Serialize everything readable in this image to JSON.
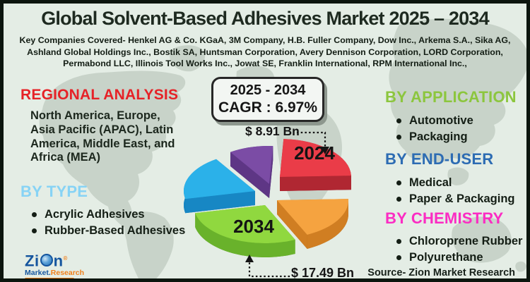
{
  "header": {
    "title": "Global Solvent-Based Adhesives Market 2025 – 2034",
    "companies": "Key Companies Covered- Henkel AG & Co. KGaA, 3M Company, H.B. Fuller Company, Dow Inc., Arkema S.A., Sika AG, Ashland Global Holdings Inc., Bostik SA, Huntsman Corporation, Avery Dennison Corporation, LORD Corporation, Permabond LLC, Illinois Tool Works Inc., Jowat SE, Franklin International, RPM International Inc.,"
  },
  "sections": {
    "regional": {
      "heading": "REGIONAL ANALYSIS",
      "color": "#e62227",
      "body": "North America, Europe, Asia Pacific (APAC), Latin America, Middle East, and Africa (MEA)"
    },
    "by_type": {
      "heading": "BY TYPE",
      "color": "#87d3f5",
      "items": [
        "Acrylic Adhesives",
        "Rubber-Based Adhesives"
      ]
    },
    "by_application": {
      "heading": "BY APPLICATION",
      "color": "#8cc63e",
      "items": [
        "Automotive",
        "Packaging"
      ]
    },
    "by_end_user": {
      "heading": "BY END-USER",
      "color": "#2d6cb3",
      "items": [
        "Medical",
        "Paper & Packaging"
      ]
    },
    "by_chemistry": {
      "heading": "BY CHEMISTRY",
      "color": "#fb2cc3",
      "items": [
        "Chloroprene Rubber",
        "Polyurethane"
      ]
    }
  },
  "cagr_box": {
    "period": "2025 - 2034",
    "cagr": "CAGR : 6.97%"
  },
  "chart_data": {
    "type": "pie",
    "title": "Global Solvent-Based Adhesives Market size 2024 vs 2034",
    "legend_position": "none",
    "slices": [
      {
        "label": "",
        "name": "purple-slice",
        "top": "#7b4ca5",
        "side": "#5e3685",
        "dark": "#4b2a6d",
        "start": 237,
        "end": 273,
        "explode": [
          2,
          -16
        ]
      },
      {
        "label": "",
        "name": "blue-slice",
        "top": "#2bb1e9",
        "side": "#1787c4",
        "dark": "#0f6ba2",
        "start": 168,
        "end": 237,
        "explode": [
          -18,
          -6
        ]
      },
      {
        "label": "2024",
        "name": "red-slice",
        "top": "#ea3c48",
        "side": "#b02732",
        "dark": "#8e1f28",
        "start": 273,
        "end": 358,
        "explode": [
          17,
          -26
        ]
      },
      {
        "label": "",
        "name": "orange-slice",
        "top": "#f5a340",
        "side": "#d07e22",
        "dark": "#b2691a",
        "start": 358,
        "end": 65,
        "explode": [
          13,
          7
        ]
      },
      {
        "label": "2034",
        "name": "green-slice",
        "top": "#90d83f",
        "side": "#69b22b",
        "dark": "#559621",
        "start": 65,
        "end": 168,
        "explode": [
          -4,
          14
        ]
      }
    ],
    "annotations": [
      {
        "text": "$ 8.91 Bn",
        "year": "2024"
      },
      {
        "text": "$ 17.49 Bn",
        "year": "2034"
      }
    ]
  },
  "logo": {
    "part1": "Zi",
    "part2": "n",
    "registered": "®",
    "tagline_left": "Market.",
    "tagline_right": "Research"
  },
  "source": "Source- Zion Market Research"
}
